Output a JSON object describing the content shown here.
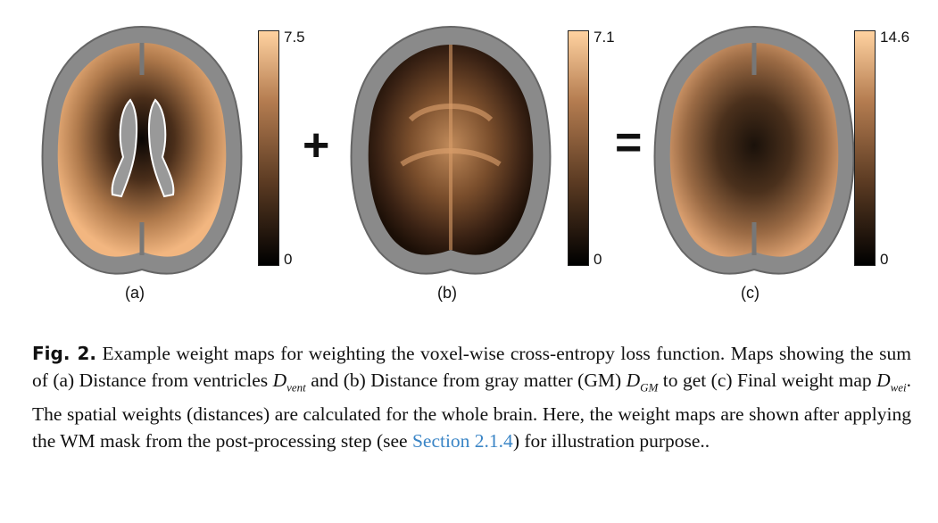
{
  "figure": {
    "panels": [
      {
        "label": "(a)",
        "colorbar_max": "7.5",
        "colorbar_min": "0"
      },
      {
        "label": "(b)",
        "colorbar_max": "7.1",
        "colorbar_min": "0"
      },
      {
        "label": "(c)",
        "colorbar_max": "14.6",
        "colorbar_min": "0"
      }
    ],
    "operator_plus": "+",
    "operator_equals": "=",
    "colormap": {
      "low": "#000000",
      "mid": "#8a5a34",
      "high": "#ffd2a0"
    }
  },
  "caption": {
    "fig_ref": "Fig. 2.",
    "t1": "Example weight maps for weighting the voxel-wise cross-entropy loss function. Maps showing the sum of (a) Distance from ventricles",
    "d_vent_main": "D",
    "d_vent_sub": "vent",
    "t2": "and (b) Distance from gray matter (GM)",
    "d_gm_main": "D",
    "d_gm_sub": "GM",
    "t3": "to get (c) Final weight map",
    "d_wei_main": "D",
    "d_wei_sub": "wei",
    "t4": ". The spatial weights (distances) are calculated for the whole brain. Here, the weight maps are shown after applying the WM mask from the post-processing step (see",
    "link": "Section 2.1.4",
    "t5": ") for illustration purpose.."
  }
}
